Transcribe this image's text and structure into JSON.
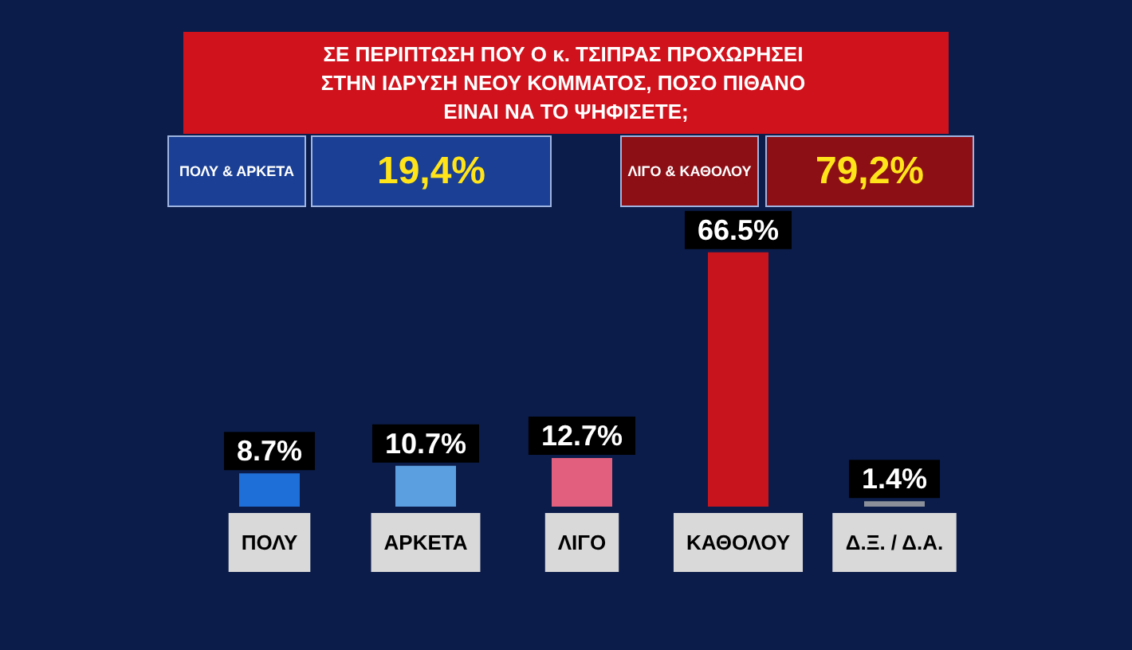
{
  "chart_data": {
    "type": "bar",
    "title": "ΣΕ ΠΕΡΙΠΤΩΣΗ ΠΟΥ Ο κ. ΤΣΙΠΡΑΣ ΠΡΟΧΩΡΗΣΕΙ ΣΤΗΝ ΙΔΡΥΣΗ ΝΕΟΥ ΚΟΜΜΑΤΟΣ, ΠΟΣΟ ΠΙΘΑΝΟ ΕΙΝΑΙ ΝΑ ΤΟ ΨΗΦΙΣΕΤΕ;",
    "categories": [
      "ΠΟΛΥ",
      "ΑΡΚΕΤΑ",
      "ΛΙΓΟ",
      "ΚΑΘΟΛΟΥ",
      "Δ.Ξ. / Δ.Α."
    ],
    "values": [
      8.7,
      10.7,
      12.7,
      66.5,
      1.4
    ],
    "colors": [
      "#1f6fd8",
      "#5c9fe0",
      "#e2607e",
      "#c8141c",
      "#8a8f99"
    ],
    "value_labels": [
      "8.7%",
      "10.7%",
      "12.7%",
      "66.5%",
      "1.4%"
    ],
    "annotations": [
      "ΠΟΛΥ & ΑΡΚΕΤΑ",
      "19,4%",
      "ΛΙΓΟ & ΚΑΘΟΛΟΥ",
      "79,2%"
    ],
    "grid": false
  }
}
